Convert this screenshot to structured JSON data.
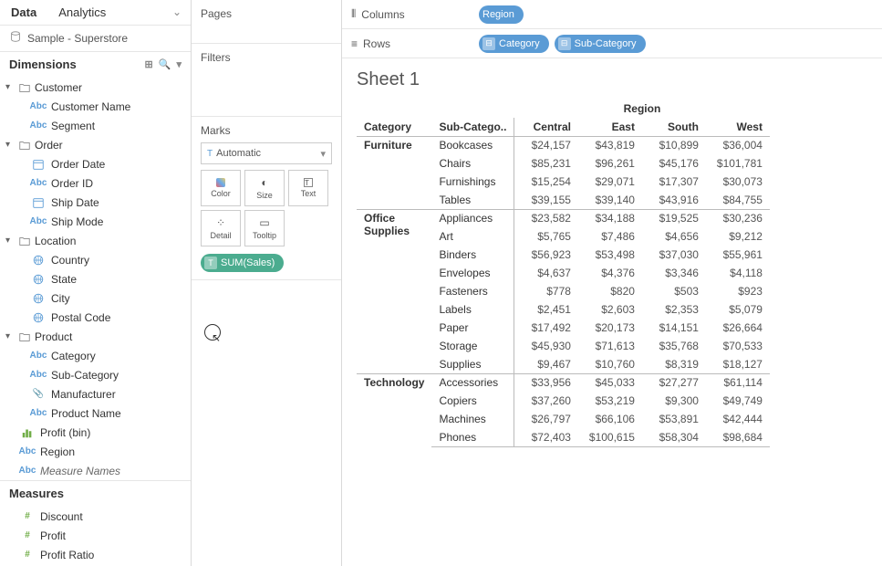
{
  "data_panel": {
    "tabs": {
      "data": "Data",
      "analytics": "Analytics"
    },
    "datasource_name": "Sample - Superstore",
    "dimensions_label": "Dimensions",
    "measures_label": "Measures",
    "folders": [
      {
        "name": "Customer",
        "fields": [
          {
            "type": "abc",
            "label": "Customer Name"
          },
          {
            "type": "abc",
            "label": "Segment"
          }
        ]
      },
      {
        "name": "Order",
        "fields": [
          {
            "type": "date",
            "label": "Order Date"
          },
          {
            "type": "abc",
            "label": "Order ID"
          },
          {
            "type": "date",
            "label": "Ship Date"
          },
          {
            "type": "abc",
            "label": "Ship Mode"
          }
        ]
      },
      {
        "name": "Location",
        "fields": [
          {
            "type": "geo",
            "label": "Country"
          },
          {
            "type": "geo",
            "label": "State"
          },
          {
            "type": "geo",
            "label": "City"
          },
          {
            "type": "geo",
            "label": "Postal Code"
          }
        ]
      },
      {
        "name": "Product",
        "fields": [
          {
            "type": "abc",
            "label": "Category"
          },
          {
            "type": "abc",
            "label": "Sub-Category"
          },
          {
            "type": "clip",
            "label": "Manufacturer"
          },
          {
            "type": "abc",
            "label": "Product Name"
          }
        ]
      }
    ],
    "loose_dims": [
      {
        "type": "bin",
        "label": "Profit (bin)"
      },
      {
        "type": "abc",
        "label": "Region"
      },
      {
        "type": "abc",
        "label": "Measure Names",
        "italic": true
      }
    ],
    "measures": [
      {
        "type": "num",
        "label": "Discount"
      },
      {
        "type": "num",
        "label": "Profit"
      },
      {
        "type": "num",
        "label": "Profit Ratio"
      }
    ]
  },
  "cards": {
    "pages": "Pages",
    "filters": "Filters",
    "marks": "Marks",
    "mark_type": "Automatic",
    "buttons": {
      "color": "Color",
      "size": "Size",
      "text": "Text",
      "detail": "Detail",
      "tooltip": "Tooltip"
    },
    "text_pill": "SUM(Sales)"
  },
  "shelves": {
    "columns_label": "Columns",
    "rows_label": "Rows",
    "columns_pills": [
      "Region"
    ],
    "rows_pills": [
      "Category",
      "Sub-Category"
    ]
  },
  "viz": {
    "sheet_title": "Sheet 1",
    "column_field_label": "Region",
    "row_field_labels": [
      "Category",
      "Sub-Catego.."
    ],
    "region_headers": [
      "Central",
      "East",
      "South",
      "West"
    ],
    "rows": [
      {
        "cat": "Furniture",
        "sub": "Bookcases",
        "vals": [
          "$24,157",
          "$43,819",
          "$10,899",
          "$36,004"
        ]
      },
      {
        "cat": "",
        "sub": "Chairs",
        "vals": [
          "$85,231",
          "$96,261",
          "$45,176",
          "$101,781"
        ]
      },
      {
        "cat": "",
        "sub": "Furnishings",
        "vals": [
          "$15,254",
          "$29,071",
          "$17,307",
          "$30,073"
        ]
      },
      {
        "cat": "",
        "sub": "Tables",
        "vals": [
          "$39,155",
          "$39,140",
          "$43,916",
          "$84,755"
        ]
      },
      {
        "cat": "Office Supplies",
        "sub": "Appliances",
        "vals": [
          "$23,582",
          "$34,188",
          "$19,525",
          "$30,236"
        ]
      },
      {
        "cat": "",
        "sub": "Art",
        "vals": [
          "$5,765",
          "$7,486",
          "$4,656",
          "$9,212"
        ]
      },
      {
        "cat": "",
        "sub": "Binders",
        "vals": [
          "$56,923",
          "$53,498",
          "$37,030",
          "$55,961"
        ]
      },
      {
        "cat": "",
        "sub": "Envelopes",
        "vals": [
          "$4,637",
          "$4,376",
          "$3,346",
          "$4,118"
        ]
      },
      {
        "cat": "",
        "sub": "Fasteners",
        "vals": [
          "$778",
          "$820",
          "$503",
          "$923"
        ]
      },
      {
        "cat": "",
        "sub": "Labels",
        "vals": [
          "$2,451",
          "$2,603",
          "$2,353",
          "$5,079"
        ]
      },
      {
        "cat": "",
        "sub": "Paper",
        "vals": [
          "$17,492",
          "$20,173",
          "$14,151",
          "$26,664"
        ]
      },
      {
        "cat": "",
        "sub": "Storage",
        "vals": [
          "$45,930",
          "$71,613",
          "$35,768",
          "$70,533"
        ]
      },
      {
        "cat": "",
        "sub": "Supplies",
        "vals": [
          "$9,467",
          "$10,760",
          "$8,319",
          "$18,127"
        ]
      },
      {
        "cat": "Technology",
        "sub": "Accessories",
        "vals": [
          "$33,956",
          "$45,033",
          "$27,277",
          "$61,114"
        ]
      },
      {
        "cat": "",
        "sub": "Copiers",
        "vals": [
          "$37,260",
          "$53,219",
          "$9,300",
          "$49,749"
        ]
      },
      {
        "cat": "",
        "sub": "Machines",
        "vals": [
          "$26,797",
          "$66,106",
          "$53,891",
          "$42,444"
        ]
      },
      {
        "cat": "",
        "sub": "Phones",
        "vals": [
          "$72,403",
          "$100,615",
          "$58,304",
          "$98,684"
        ]
      }
    ]
  },
  "colors": {
    "pill_blue": "#5a9bd5",
    "pill_green": "#4bac8f"
  }
}
